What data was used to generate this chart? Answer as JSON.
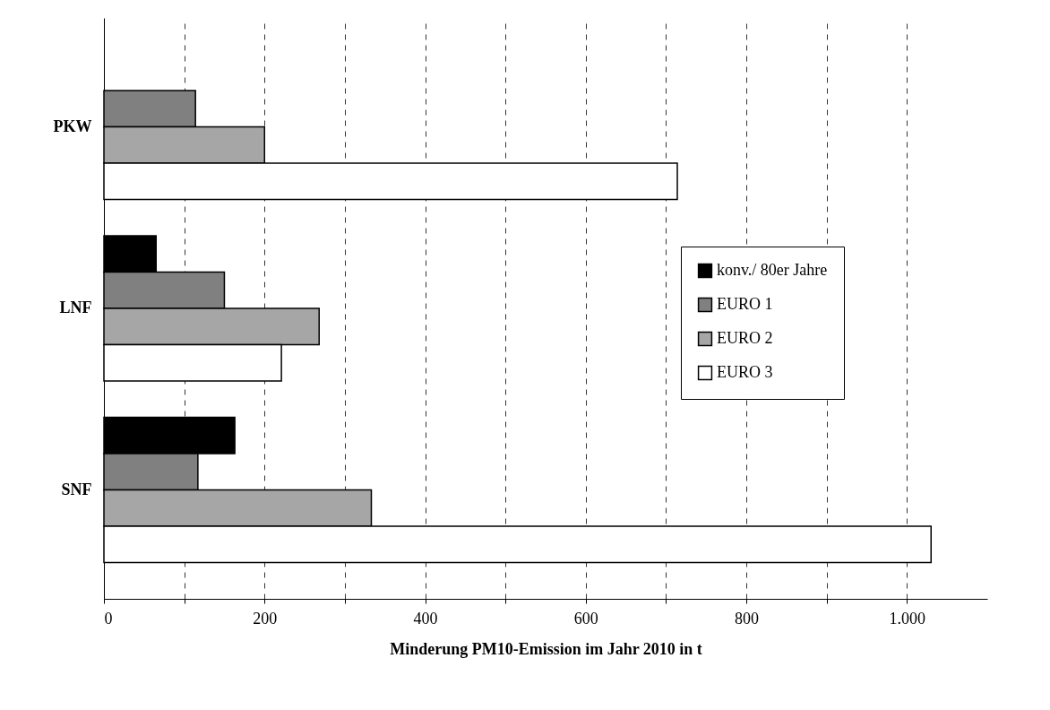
{
  "chart_data": {
    "type": "bar",
    "orientation": "horizontal",
    "xlabel": "Minderung PM10-Emission im Jahr 2010 in t",
    "categories": [
      "PKW",
      "LNF",
      "SNF"
    ],
    "series": [
      {
        "name": "konv./ 80er Jahre",
        "color": "#000000",
        "values": [
          null,
          65,
          163
        ]
      },
      {
        "name": "EURO 1",
        "color": "#808080",
        "values": [
          114,
          150,
          117
        ]
      },
      {
        "name": "EURO 2",
        "color": "#a6a6a6",
        "values": [
          200,
          268,
          333
        ]
      },
      {
        "name": "EURO 3",
        "color": "#ffffff",
        "values": [
          714,
          221,
          1030
        ]
      }
    ],
    "xlim": [
      0,
      1100
    ],
    "xticks": [
      0,
      {
        "value": 100,
        "label": null
      },
      200,
      {
        "value": 300,
        "label": null
      },
      400,
      {
        "value": 500,
        "label": null
      },
      600,
      {
        "value": 700,
        "label": null
      },
      800,
      {
        "value": 900,
        "label": null
      },
      {
        "value": 1000,
        "label": "1.000"
      }
    ],
    "grid": "x",
    "legend": "right"
  }
}
